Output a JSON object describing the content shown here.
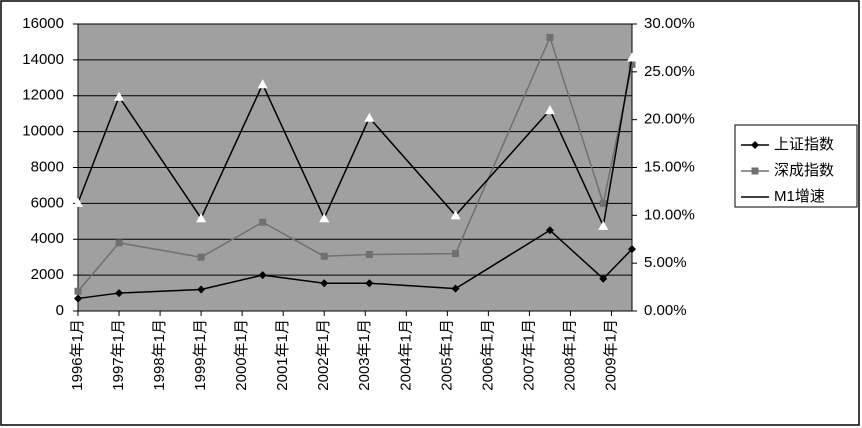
{
  "chart_data": {
    "type": "line",
    "x": [
      1996.0,
      1997.0,
      1999.0,
      2000.5,
      2002.0,
      2003.1,
      2005.2,
      2007.5,
      2008.8,
      2009.5
    ],
    "xlim": [
      1996,
      2009.5
    ],
    "xticks": [
      {
        "value": 1996,
        "label": "1996年1月"
      },
      {
        "value": 1997,
        "label": "1997年1月"
      },
      {
        "value": 1998,
        "label": "1998年1月"
      },
      {
        "value": 1999,
        "label": "1999年1月"
      },
      {
        "value": 2000,
        "label": "2000年1月"
      },
      {
        "value": 2001,
        "label": "2001年1月"
      },
      {
        "value": 2002,
        "label": "2002年1月"
      },
      {
        "value": 2003,
        "label": "2003年1月"
      },
      {
        "value": 2004,
        "label": "2004年1月"
      },
      {
        "value": 2005,
        "label": "2005年1月"
      },
      {
        "value": 2006,
        "label": "2006年1月"
      },
      {
        "value": 2007,
        "label": "2007年1月"
      },
      {
        "value": 2008,
        "label": "2008年1月"
      },
      {
        "value": 2009,
        "label": "2009年1月"
      }
    ],
    "ylim": [
      0,
      16000
    ],
    "yticks": [
      0,
      2000,
      4000,
      6000,
      8000,
      10000,
      12000,
      14000,
      16000
    ],
    "y2lim": [
      0,
      30
    ],
    "y2ticks": [
      {
        "value": 0,
        "label": "0.00%"
      },
      {
        "value": 5,
        "label": "5.00%"
      },
      {
        "value": 10,
        "label": "10.00%"
      },
      {
        "value": 15,
        "label": "15.00%"
      },
      {
        "value": 20,
        "label": "20.00%"
      },
      {
        "value": 25,
        "label": "25.00%"
      },
      {
        "value": 30,
        "label": "30.00%"
      }
    ],
    "grid": true,
    "legend": "right",
    "series": [
      {
        "name": "上证指数",
        "color": "#000000",
        "marker": "diamond",
        "values": [
          700,
          1000,
          1200,
          2000,
          1550,
          1550,
          1250,
          4500,
          1800,
          3450
        ]
      },
      {
        "name": "深成指数",
        "color": "#707070",
        "marker": "square",
        "values": [
          1100,
          3800,
          3000,
          4950,
          3050,
          3150,
          3200,
          15250,
          6000,
          13750
        ]
      },
      {
        "name": "M1增速",
        "color": "#000000",
        "marker": "triangle",
        "axis": "y2",
        "values": [
          11.3,
          22.4,
          9.7,
          23.7,
          9.7,
          20.2,
          10.0,
          21.0,
          8.9,
          26.5
        ]
      }
    ]
  }
}
